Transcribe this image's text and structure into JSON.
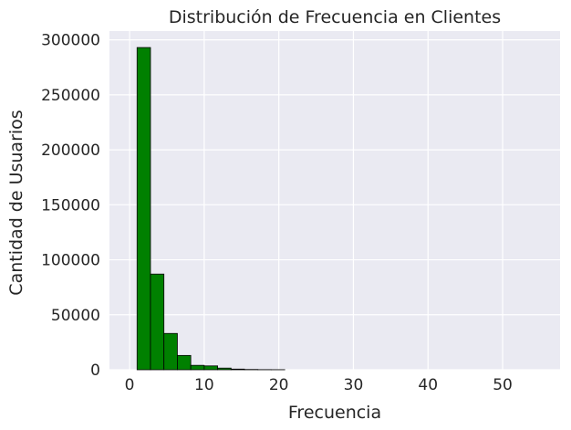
{
  "chart_data": {
    "type": "bar",
    "title": "Distribución de Frecuencia en Clientes",
    "xlabel": "Frecuencia",
    "ylabel": "Cantidad de Usuarios",
    "xlim": [
      -2.7,
      57.7
    ],
    "ylim": [
      0,
      308000
    ],
    "xticks": [
      0,
      10,
      20,
      30,
      40,
      50
    ],
    "yticks": [
      0,
      50000,
      100000,
      150000,
      200000,
      250000,
      300000
    ],
    "grid": true,
    "bar_color": "#008000",
    "bar_edge_color": "#000000",
    "background_color": "#eaeaf2",
    "bins": [
      {
        "x0": 1.0,
        "x1": 2.8,
        "value": 293000
      },
      {
        "x0": 2.8,
        "x1": 4.6,
        "value": 87000
      },
      {
        "x0": 4.6,
        "x1": 6.4,
        "value": 33000
      },
      {
        "x0": 6.4,
        "x1": 8.2,
        "value": 13000
      },
      {
        "x0": 8.2,
        "x1": 10.0,
        "value": 4000
      },
      {
        "x0": 10.0,
        "x1": 11.8,
        "value": 3500
      },
      {
        "x0": 11.8,
        "x1": 13.6,
        "value": 1500
      },
      {
        "x0": 13.6,
        "x1": 15.4,
        "value": 600
      },
      {
        "x0": 15.4,
        "x1": 17.2,
        "value": 250
      },
      {
        "x0": 17.2,
        "x1": 19.0,
        "value": 100
      },
      {
        "x0": 19.0,
        "x1": 20.8,
        "value": 50
      }
    ]
  }
}
